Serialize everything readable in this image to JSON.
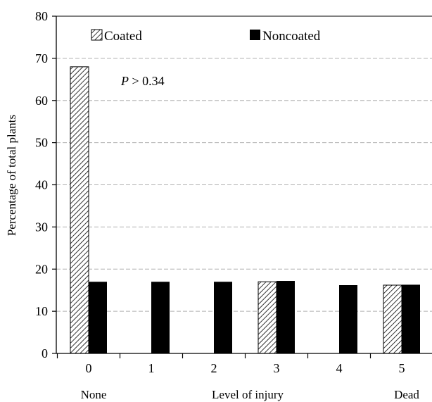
{
  "chart_data": {
    "type": "bar",
    "categories": [
      "0",
      "1",
      "2",
      "3",
      "4",
      "5"
    ],
    "category_sublabels": [
      "None",
      "",
      "",
      "",
      "",
      "Dead"
    ],
    "series": [
      {
        "name": "Coated",
        "values": [
          68,
          0,
          0,
          17,
          0,
          16.2
        ],
        "pattern": "hatched"
      },
      {
        "name": "Noncoated",
        "values": [
          17,
          17,
          17,
          17.2,
          16.2,
          16.3
        ],
        "pattern": "solid"
      }
    ],
    "xlabel": "Level of injury",
    "ylabel": "Percentage of total plants",
    "ylim": [
      0,
      80
    ],
    "yticks": [
      0,
      10,
      20,
      30,
      40,
      50,
      60,
      70,
      80
    ],
    "annotation": {
      "prefix": "P",
      "text": " > 0.34"
    },
    "grid": true,
    "legend_position": "top",
    "colors": {
      "bars": "#000000",
      "grid": "#b0b0b0",
      "background": "#ffffff"
    }
  }
}
